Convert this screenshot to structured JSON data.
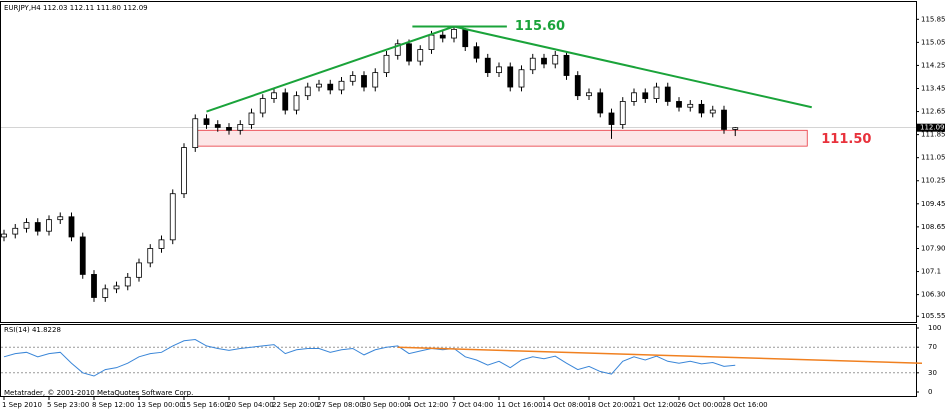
{
  "chart_data": {
    "type": "candlestick",
    "title": "EURJPY,H4  112.03 112.11 111.80 112.09",
    "footer": "Metatrader, © 2001-2010 MetaQuotes Software Corp.",
    "categories": [
      "1 Sep 2010",
      null,
      null,
      null,
      "5 Sep 23:00",
      null,
      null,
      null,
      "8 Sep 12:00",
      null,
      null,
      null,
      "13 Sep 00:00",
      null,
      null,
      null,
      "15 Sep 16:00",
      null,
      null,
      null,
      "20 Sep 04:00",
      null,
      null,
      null,
      "22 Sep 20:00",
      null,
      null,
      null,
      "27 Sep 08:00",
      null,
      null,
      null,
      "30 Sep 00:00",
      null,
      null,
      null,
      "4 Oct 12:00",
      null,
      null,
      null,
      "7 Oct 04:00",
      null,
      null,
      null,
      "11 Oct 16:00",
      null,
      null,
      null,
      "14 Oct 08:00",
      null,
      null,
      null,
      "18 Oct 20:00",
      null,
      null,
      null,
      "21 Oct 12:00",
      null,
      null,
      null,
      "26 Oct 00:00",
      null,
      null,
      null,
      "28 Oct 16:00",
      null
    ],
    "open": [
      108.3,
      108.4,
      108.6,
      108.8,
      108.5,
      108.9,
      109.0,
      108.3,
      107.0,
      106.2,
      106.5,
      106.6,
      106.9,
      107.4,
      107.9,
      108.2,
      109.8,
      111.4,
      112.4,
      112.2,
      112.1,
      112.0,
      112.2,
      112.6,
      113.1,
      113.3,
      112.7,
      113.2,
      113.5,
      113.6,
      113.4,
      113.7,
      113.9,
      113.5,
      114.0,
      114.6,
      115.0,
      114.4,
      114.8,
      115.3,
      115.2,
      115.5,
      114.9,
      114.5,
      114.0,
      114.2,
      113.5,
      114.1,
      114.5,
      114.3,
      114.6,
      113.9,
      113.2,
      113.3,
      112.6,
      112.2,
      113.0,
      113.3,
      113.1,
      113.5,
      113.0,
      112.8,
      112.9,
      112.6,
      112.7,
      112.03
    ],
    "high": [
      108.55,
      108.75,
      108.95,
      108.95,
      109.05,
      109.15,
      109.15,
      108.45,
      107.15,
      106.65,
      106.75,
      107.05,
      107.55,
      108.05,
      108.35,
      109.95,
      111.55,
      112.55,
      112.55,
      112.35,
      112.25,
      112.35,
      112.75,
      113.25,
      113.45,
      113.45,
      113.35,
      113.65,
      113.75,
      113.75,
      113.85,
      114.05,
      114.05,
      114.15,
      114.75,
      115.15,
      115.15,
      114.95,
      115.45,
      115.45,
      115.6,
      115.55,
      115.05,
      114.65,
      114.35,
      114.35,
      114.25,
      114.65,
      114.65,
      114.75,
      114.75,
      114.05,
      113.45,
      113.45,
      112.75,
      113.15,
      113.45,
      113.45,
      113.65,
      113.65,
      113.15,
      113.05,
      113.05,
      112.85,
      112.85,
      112.11
    ],
    "low": [
      108.15,
      108.25,
      108.45,
      108.35,
      108.35,
      108.75,
      108.15,
      106.85,
      106.05,
      106.05,
      106.35,
      106.45,
      106.75,
      107.25,
      107.75,
      108.05,
      109.65,
      111.25,
      112.05,
      111.95,
      111.85,
      111.85,
      112.05,
      112.45,
      112.95,
      112.55,
      112.55,
      113.05,
      113.35,
      113.25,
      113.25,
      113.55,
      113.35,
      113.35,
      113.85,
      114.45,
      114.25,
      114.25,
      114.65,
      115.05,
      115.05,
      114.75,
      114.35,
      113.85,
      113.85,
      113.35,
      113.35,
      113.95,
      114.15,
      114.15,
      113.75,
      113.05,
      113.05,
      112.45,
      111.7,
      112.05,
      112.85,
      112.95,
      112.95,
      112.85,
      112.65,
      112.65,
      112.45,
      112.45,
      111.88,
      111.8
    ],
    "close": [
      108.4,
      108.6,
      108.8,
      108.5,
      108.9,
      109.0,
      108.3,
      107.0,
      106.2,
      106.5,
      106.6,
      106.9,
      107.4,
      107.9,
      108.2,
      109.8,
      111.4,
      112.4,
      112.2,
      112.1,
      112.0,
      112.2,
      112.6,
      113.1,
      113.3,
      112.7,
      113.2,
      113.5,
      113.6,
      113.4,
      113.7,
      113.9,
      113.5,
      114.0,
      114.6,
      115.0,
      114.4,
      114.8,
      115.3,
      115.2,
      115.5,
      114.9,
      114.5,
      114.0,
      114.2,
      113.5,
      114.1,
      114.5,
      114.3,
      114.6,
      113.9,
      113.2,
      113.3,
      112.6,
      112.2,
      113.0,
      113.3,
      113.1,
      113.5,
      113.0,
      112.8,
      112.9,
      112.6,
      112.7,
      112.03,
      112.09
    ],
    "ylim": [
      105.35,
      116.45
    ],
    "yticks": [
      115.85,
      115.05,
      114.25,
      113.45,
      112.65,
      111.85,
      111.05,
      110.25,
      109.45,
      108.65,
      {
        "value": 107.9,
        "label": "107.90"
      },
      107.1,
      {
        "value": 106.3,
        "label": "106.30"
      },
      105.55
    ],
    "current_price": {
      "value": 112.09,
      "label": "112.09"
    },
    "trendlines": [
      {
        "from": [
          18,
          112.65
        ],
        "to": [
          40,
          115.6
        ],
        "color": "#1aa33a"
      },
      {
        "from": [
          40,
          115.6
        ],
        "to": [
          71.8,
          112.8
        ],
        "color": "#1aa33a"
      },
      {
        "from": [
          36.3,
          115.6
        ],
        "to": [
          44.7,
          115.6
        ],
        "color": "#1aa33a"
      }
    ],
    "zone": {
      "from": 17.2,
      "to": 71.4,
      "low": 111.45,
      "high": 112.0,
      "color": "#e8323c"
    },
    "annotations": [
      {
        "text": "115.60",
        "value": 115.6,
        "color": "#1aa33a"
      },
      {
        "text": "111.50",
        "value": 111.5,
        "color": "#e8323c"
      }
    ],
    "rsi": {
      "label": "RSI(14) 41.8228",
      "color": "#3a86d8",
      "values": [
        55,
        60,
        62,
        55,
        60,
        62,
        45,
        30,
        25,
        35,
        38,
        45,
        55,
        60,
        62,
        72,
        80,
        82,
        72,
        68,
        65,
        68,
        70,
        72,
        74,
        60,
        66,
        68,
        68,
        62,
        66,
        68,
        58,
        66,
        70,
        72,
        60,
        64,
        68,
        66,
        68,
        55,
        50,
        42,
        48,
        38,
        50,
        55,
        52,
        56,
        45,
        35,
        40,
        32,
        28,
        48,
        55,
        50,
        56,
        48,
        45,
        48,
        44,
        46,
        40,
        41.8228
      ],
      "ylim": [
        0,
        100
      ],
      "yticks": [
        100,
        70,
        30,
        0
      ],
      "trendline": {
        "from": [
          35,
          70
        ],
        "to": [
          81.6,
          45
        ],
        "color": "#f08020"
      }
    }
  }
}
